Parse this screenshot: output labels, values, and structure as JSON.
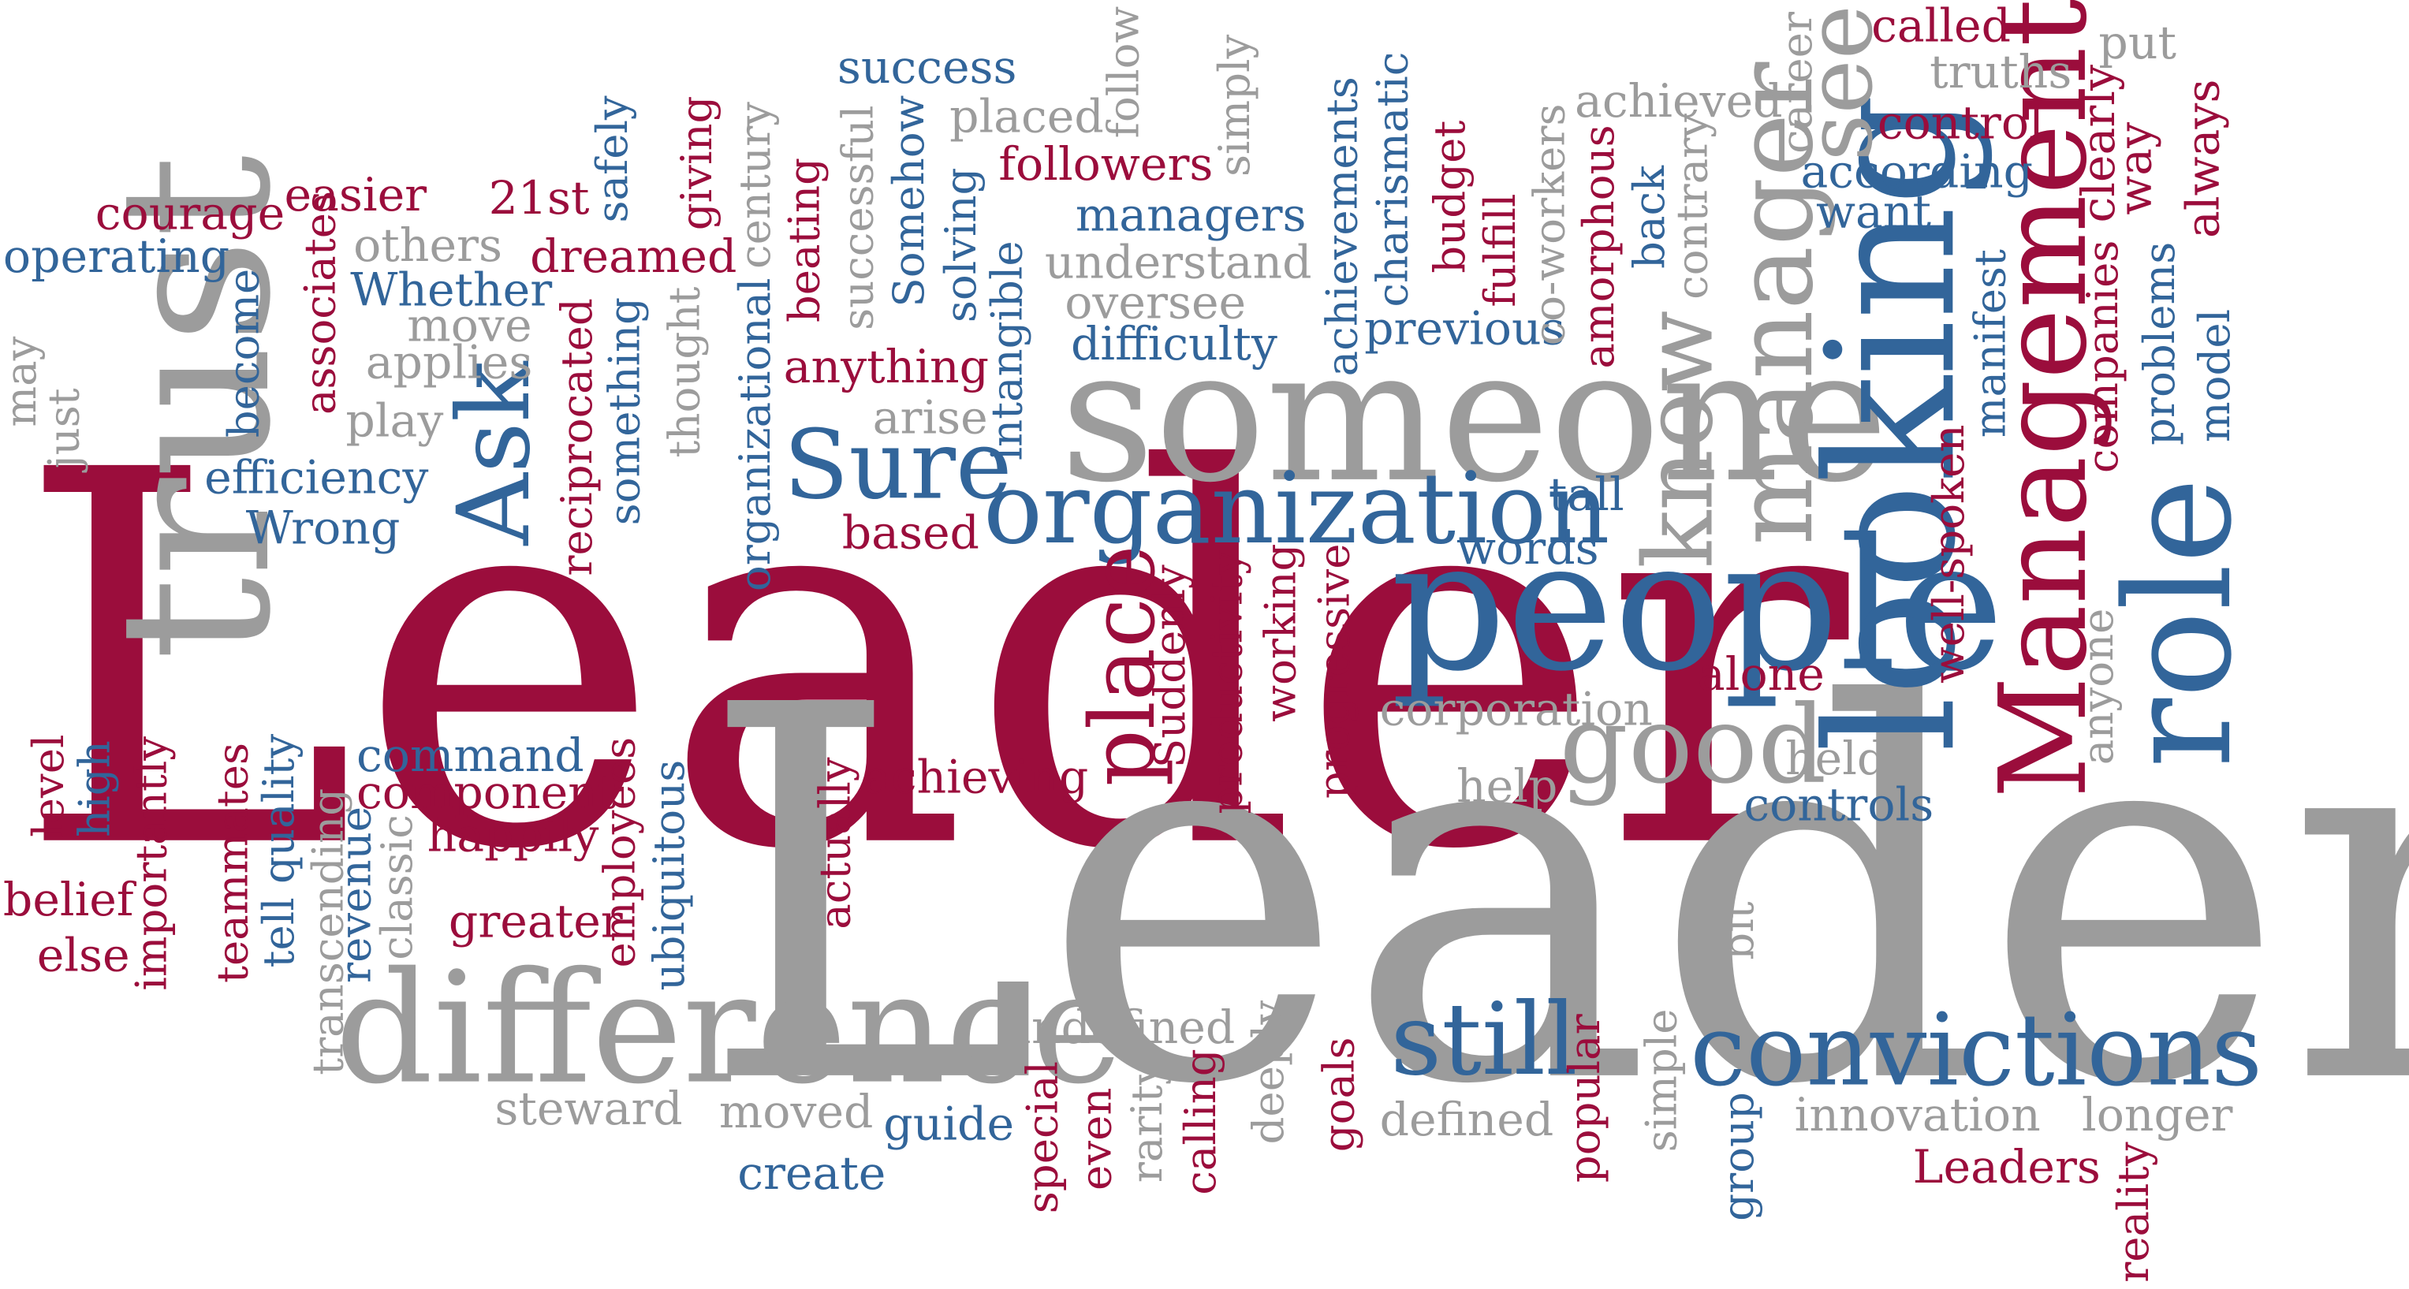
{
  "palette": {
    "red": "#9b0d3c",
    "blue": "#32659a",
    "gray": "#9c9c9c",
    "background": "#ffffff"
  },
  "words": {
    "leader": "Leader",
    "leadership": "Leadership",
    "trust": "trust",
    "someone": "someone",
    "people": "people",
    "organization": "organization",
    "looking": "looking",
    "manager": "manager",
    "management": "Management",
    "role": "role",
    "difference": "difference",
    "good": "good",
    "convictions": "convictions",
    "still": "still",
    "sure": "Sure",
    "ask": "Ask",
    "place": "place",
    "know": "know",
    "see": "see",
    "success": "success",
    "follow": "follow",
    "simply": "simply",
    "called": "called",
    "put": "put",
    "truths": "truths",
    "achieved": "achieved",
    "career": "career",
    "control": "control",
    "according": "according",
    "want": "want",
    "clearly": "clearly",
    "way": "way",
    "always": "always",
    "placed": "placed",
    "followers": "followers",
    "managers": "managers",
    "understand": "understand",
    "oversee": "oversee",
    "difficulty": "difficulty",
    "previous": "previous",
    "courage": "courage",
    "easier": "easier",
    "21st": "21st",
    "safely": "safely",
    "giving": "giving",
    "century": "century",
    "operating": "operating",
    "others": "others",
    "dreamed": "dreamed",
    "whether": "Whether",
    "move": "move",
    "applies": "applies",
    "play": "play",
    "efficiency": "efficiency",
    "wrong": "Wrong",
    "may": "may",
    "just": "just",
    "become": "become",
    "associates": "associates",
    "reciprocated": "reciprocated",
    "something": "something",
    "thought": "thought",
    "organizational": "organizational",
    "beating": "beating",
    "successful": "successful",
    "somehow": "Somehow",
    "solving": "solving",
    "intangible": "intangible",
    "anything": "anything",
    "arise": "arise",
    "based": "based",
    "achievements": "achievements",
    "charismatic": "charismatic",
    "budget": "budget",
    "fulfill": "fulfill",
    "coworkers": "co-workers",
    "amorphous": "amorphous",
    "back": "back",
    "contrary": "contrary",
    "tall": "tall",
    "words": "words",
    "alone": "alone",
    "manifest": "manifest",
    "companies": "companies",
    "problems": "problems",
    "model": "model",
    "wellspoken": "well-spoken",
    "anyone": "anyone",
    "corporation": "corporation",
    "held": "held",
    "help": "help",
    "controls": "controls",
    "bit": "bit",
    "suddenly": "Suddenly",
    "productivity": "productivity",
    "working": "working",
    "progressive": "progressive",
    "achieving": "achieving",
    "actually": "actually",
    "level": "level",
    "high": "high",
    "importantly": "importantly",
    "teammates": "teammates",
    "tellquality": "tell quality",
    "transcending": "transcending",
    "revenue": "revenue",
    "classic": "classic",
    "command": "command",
    "component": "component",
    "happily": "happily",
    "employees": "employees",
    "ubiquitous": "ubiquitous",
    "greater": "greater",
    "belief": "belief",
    "else": "else",
    "steward": "steward",
    "moved": "moved",
    "guide": "guide",
    "create": "create",
    "undefined": "undefined",
    "special": "special",
    "even": "even",
    "rarity": "rarity",
    "calling": "calling",
    "deeply": "deeply",
    "goals": "goals",
    "defined": "defined",
    "popular": "popular",
    "simple": "simple",
    "group": "group",
    "innovation": "innovation",
    "longer": "longer",
    "leaders": "Leaders",
    "reality": "reality"
  }
}
